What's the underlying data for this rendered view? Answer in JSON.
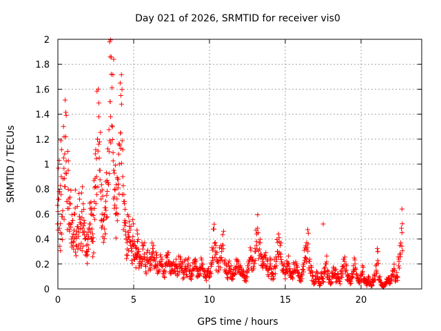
{
  "chart_data": {
    "type": "scatter",
    "title": "Day 021 of 2026, SRMTID for receiver vis0",
    "xlabel": "GPS time / hours",
    "ylabel": "SRMTID / TECUs",
    "xlim": [
      0,
      24
    ],
    "ylim": [
      0,
      2
    ],
    "xticks": [
      0,
      5,
      10,
      15,
      20
    ],
    "yticks": [
      0,
      0.2,
      0.4,
      0.6,
      0.8,
      1,
      1.2,
      1.4,
      1.6,
      1.8,
      2
    ],
    "grid": true,
    "marker": "+",
    "color": "#ff0000",
    "series": [
      {
        "name": "vis0",
        "x": [
          0.0,
          0.08,
          0.15,
          0.22,
          0.3,
          0.38,
          0.45,
          0.52,
          0.6,
          0.68,
          0.75,
          0.82,
          0.9,
          0.98,
          1.05,
          1.12,
          1.2,
          1.28,
          1.35,
          1.42,
          1.5,
          1.58,
          1.65,
          1.72,
          1.8,
          1.88,
          1.95,
          2.02,
          2.1,
          2.18,
          2.25,
          2.32,
          2.4,
          2.48,
          2.55,
          2.62,
          2.7,
          2.78,
          2.85,
          2.92,
          3.0,
          3.08,
          3.15,
          3.22,
          3.3,
          3.38,
          3.45,
          3.52,
          3.6,
          3.68,
          3.75,
          3.82,
          3.9,
          3.98,
          4.05,
          4.12,
          4.2,
          4.28,
          4.35,
          4.42,
          4.5,
          4.58,
          4.65,
          4.72,
          4.8,
          4.88,
          4.95,
          5.02,
          5.1,
          5.18,
          5.25,
          5.32,
          5.4,
          5.5,
          5.6,
          5.7,
          5.8,
          5.9,
          6.0,
          6.1,
          6.2,
          6.3,
          6.4,
          6.5,
          6.6,
          6.7,
          6.8,
          6.9,
          7.0,
          7.1,
          7.2,
          7.3,
          7.4,
          7.5,
          7.6,
          7.7,
          7.8,
          7.9,
          8.0,
          8.1,
          8.2,
          8.3,
          8.4,
          8.5,
          8.6,
          8.7,
          8.8,
          8.9,
          9.0,
          9.1,
          9.2,
          9.3,
          9.4,
          9.5,
          9.6,
          9.7,
          9.8,
          9.9,
          10.0,
          10.1,
          10.2,
          10.3,
          10.4,
          10.5,
          10.6,
          10.7,
          10.8,
          10.9,
          11.0,
          11.1,
          11.2,
          11.3,
          11.4,
          11.5,
          11.6,
          11.7,
          11.8,
          11.9,
          12.0,
          12.1,
          12.2,
          12.3,
          12.4,
          12.5,
          12.6,
          12.7,
          12.8,
          12.9,
          13.0,
          13.1,
          13.2,
          13.3,
          13.4,
          13.5,
          13.6,
          13.7,
          13.8,
          13.9,
          14.0,
          14.1,
          14.2,
          14.3,
          14.4,
          14.5,
          14.6,
          14.7,
          14.8,
          14.9,
          15.0,
          15.1,
          15.2,
          15.3,
          15.4,
          15.5,
          15.6,
          15.7,
          15.8,
          15.9,
          16.0,
          16.1,
          16.2,
          16.3,
          16.4,
          16.5,
          16.6,
          16.7,
          16.8,
          16.9,
          17.0,
          17.1,
          17.2,
          17.3,
          17.4,
          17.5,
          17.6,
          17.7,
          17.8,
          17.9,
          18.0,
          18.1,
          18.2,
          18.3,
          18.4,
          18.5,
          18.6,
          18.7,
          18.8,
          18.9,
          19.0,
          19.1,
          19.2,
          19.3,
          19.4,
          19.5,
          19.6,
          19.7,
          19.8,
          19.9,
          20.0,
          20.1,
          20.2,
          20.3,
          20.4,
          20.5,
          20.6,
          20.7,
          20.8,
          20.9,
          21.0,
          21.1,
          21.2,
          21.3,
          21.4,
          21.5,
          21.6,
          21.7,
          21.8,
          21.9,
          22.0,
          22.1,
          22.2,
          22.3,
          22.4,
          22.5,
          22.6,
          22.7
        ],
        "y": [
          0.62,
          0.78,
          0.45,
          0.9,
          0.58,
          1.05,
          0.82,
          1.22,
          0.7,
          0.95,
          0.52,
          0.68,
          0.4,
          0.55,
          0.38,
          0.6,
          0.35,
          0.5,
          0.42,
          0.58,
          0.48,
          0.62,
          0.45,
          0.55,
          0.4,
          0.35,
          0.3,
          0.42,
          0.52,
          0.6,
          0.48,
          0.38,
          0.7,
          0.82,
          0.9,
          1.2,
          1.38,
          0.95,
          0.72,
          0.6,
          0.55,
          0.48,
          0.65,
          0.75,
          0.85,
          1.1,
          1.5,
          1.72,
          1.3,
          0.95,
          0.8,
          0.6,
          0.72,
          0.88,
          1.0,
          1.25,
          1.48,
          0.9,
          0.7,
          0.55,
          0.4,
          0.32,
          0.45,
          0.5,
          0.38,
          0.3,
          0.42,
          0.35,
          0.28,
          0.25,
          0.38,
          0.3,
          0.22,
          0.2,
          0.32,
          0.28,
          0.18,
          0.25,
          0.22,
          0.2,
          0.28,
          0.3,
          0.18,
          0.25,
          0.15,
          0.2,
          0.22,
          0.18,
          0.12,
          0.2,
          0.25,
          0.22,
          0.18,
          0.15,
          0.2,
          0.16,
          0.18,
          0.14,
          0.2,
          0.22,
          0.16,
          0.12,
          0.18,
          0.15,
          0.2,
          0.14,
          0.1,
          0.16,
          0.2,
          0.18,
          0.14,
          0.12,
          0.16,
          0.2,
          0.15,
          0.12,
          0.1,
          0.14,
          0.1,
          0.18,
          0.25,
          0.48,
          0.3,
          0.22,
          0.18,
          0.25,
          0.3,
          0.35,
          0.2,
          0.15,
          0.12,
          0.18,
          0.14,
          0.1,
          0.12,
          0.15,
          0.18,
          0.2,
          0.14,
          0.16,
          0.12,
          0.1,
          0.08,
          0.14,
          0.2,
          0.25,
          0.22,
          0.18,
          0.3,
          0.38,
          0.45,
          0.32,
          0.28,
          0.22,
          0.2,
          0.25,
          0.18,
          0.15,
          0.2,
          0.12,
          0.1,
          0.18,
          0.22,
          0.3,
          0.38,
          0.28,
          0.2,
          0.16,
          0.12,
          0.18,
          0.2,
          0.14,
          0.1,
          0.12,
          0.16,
          0.2,
          0.15,
          0.1,
          0.08,
          0.12,
          0.18,
          0.25,
          0.32,
          0.36,
          0.22,
          0.15,
          0.1,
          0.05,
          0.08,
          0.12,
          0.06,
          0.04,
          0.1,
          0.08,
          0.14,
          0.2,
          0.12,
          0.08,
          0.05,
          0.1,
          0.15,
          0.12,
          0.08,
          0.1,
          0.06,
          0.12,
          0.18,
          0.22,
          0.15,
          0.1,
          0.08,
          0.06,
          0.1,
          0.14,
          0.2,
          0.12,
          0.08,
          0.05,
          0.1,
          0.14,
          0.08,
          0.06,
          0.04,
          0.08,
          0.05,
          0.03,
          0.06,
          0.1,
          0.15,
          0.3,
          0.08,
          0.05,
          0.03,
          0.02,
          0.04,
          0.06,
          0.08,
          0.05,
          0.1,
          0.12,
          0.15,
          0.08,
          0.1,
          0.22,
          0.28,
          0.45
        ]
      }
    ],
    "annotations": [
      {
        "x": 3.68,
        "y": 1.84
      },
      {
        "x": 0.55,
        "y": 1.39
      },
      {
        "x": 17.5,
        "y": 0.52
      },
      {
        "x": 22.7,
        "y": 0.64
      }
    ]
  }
}
